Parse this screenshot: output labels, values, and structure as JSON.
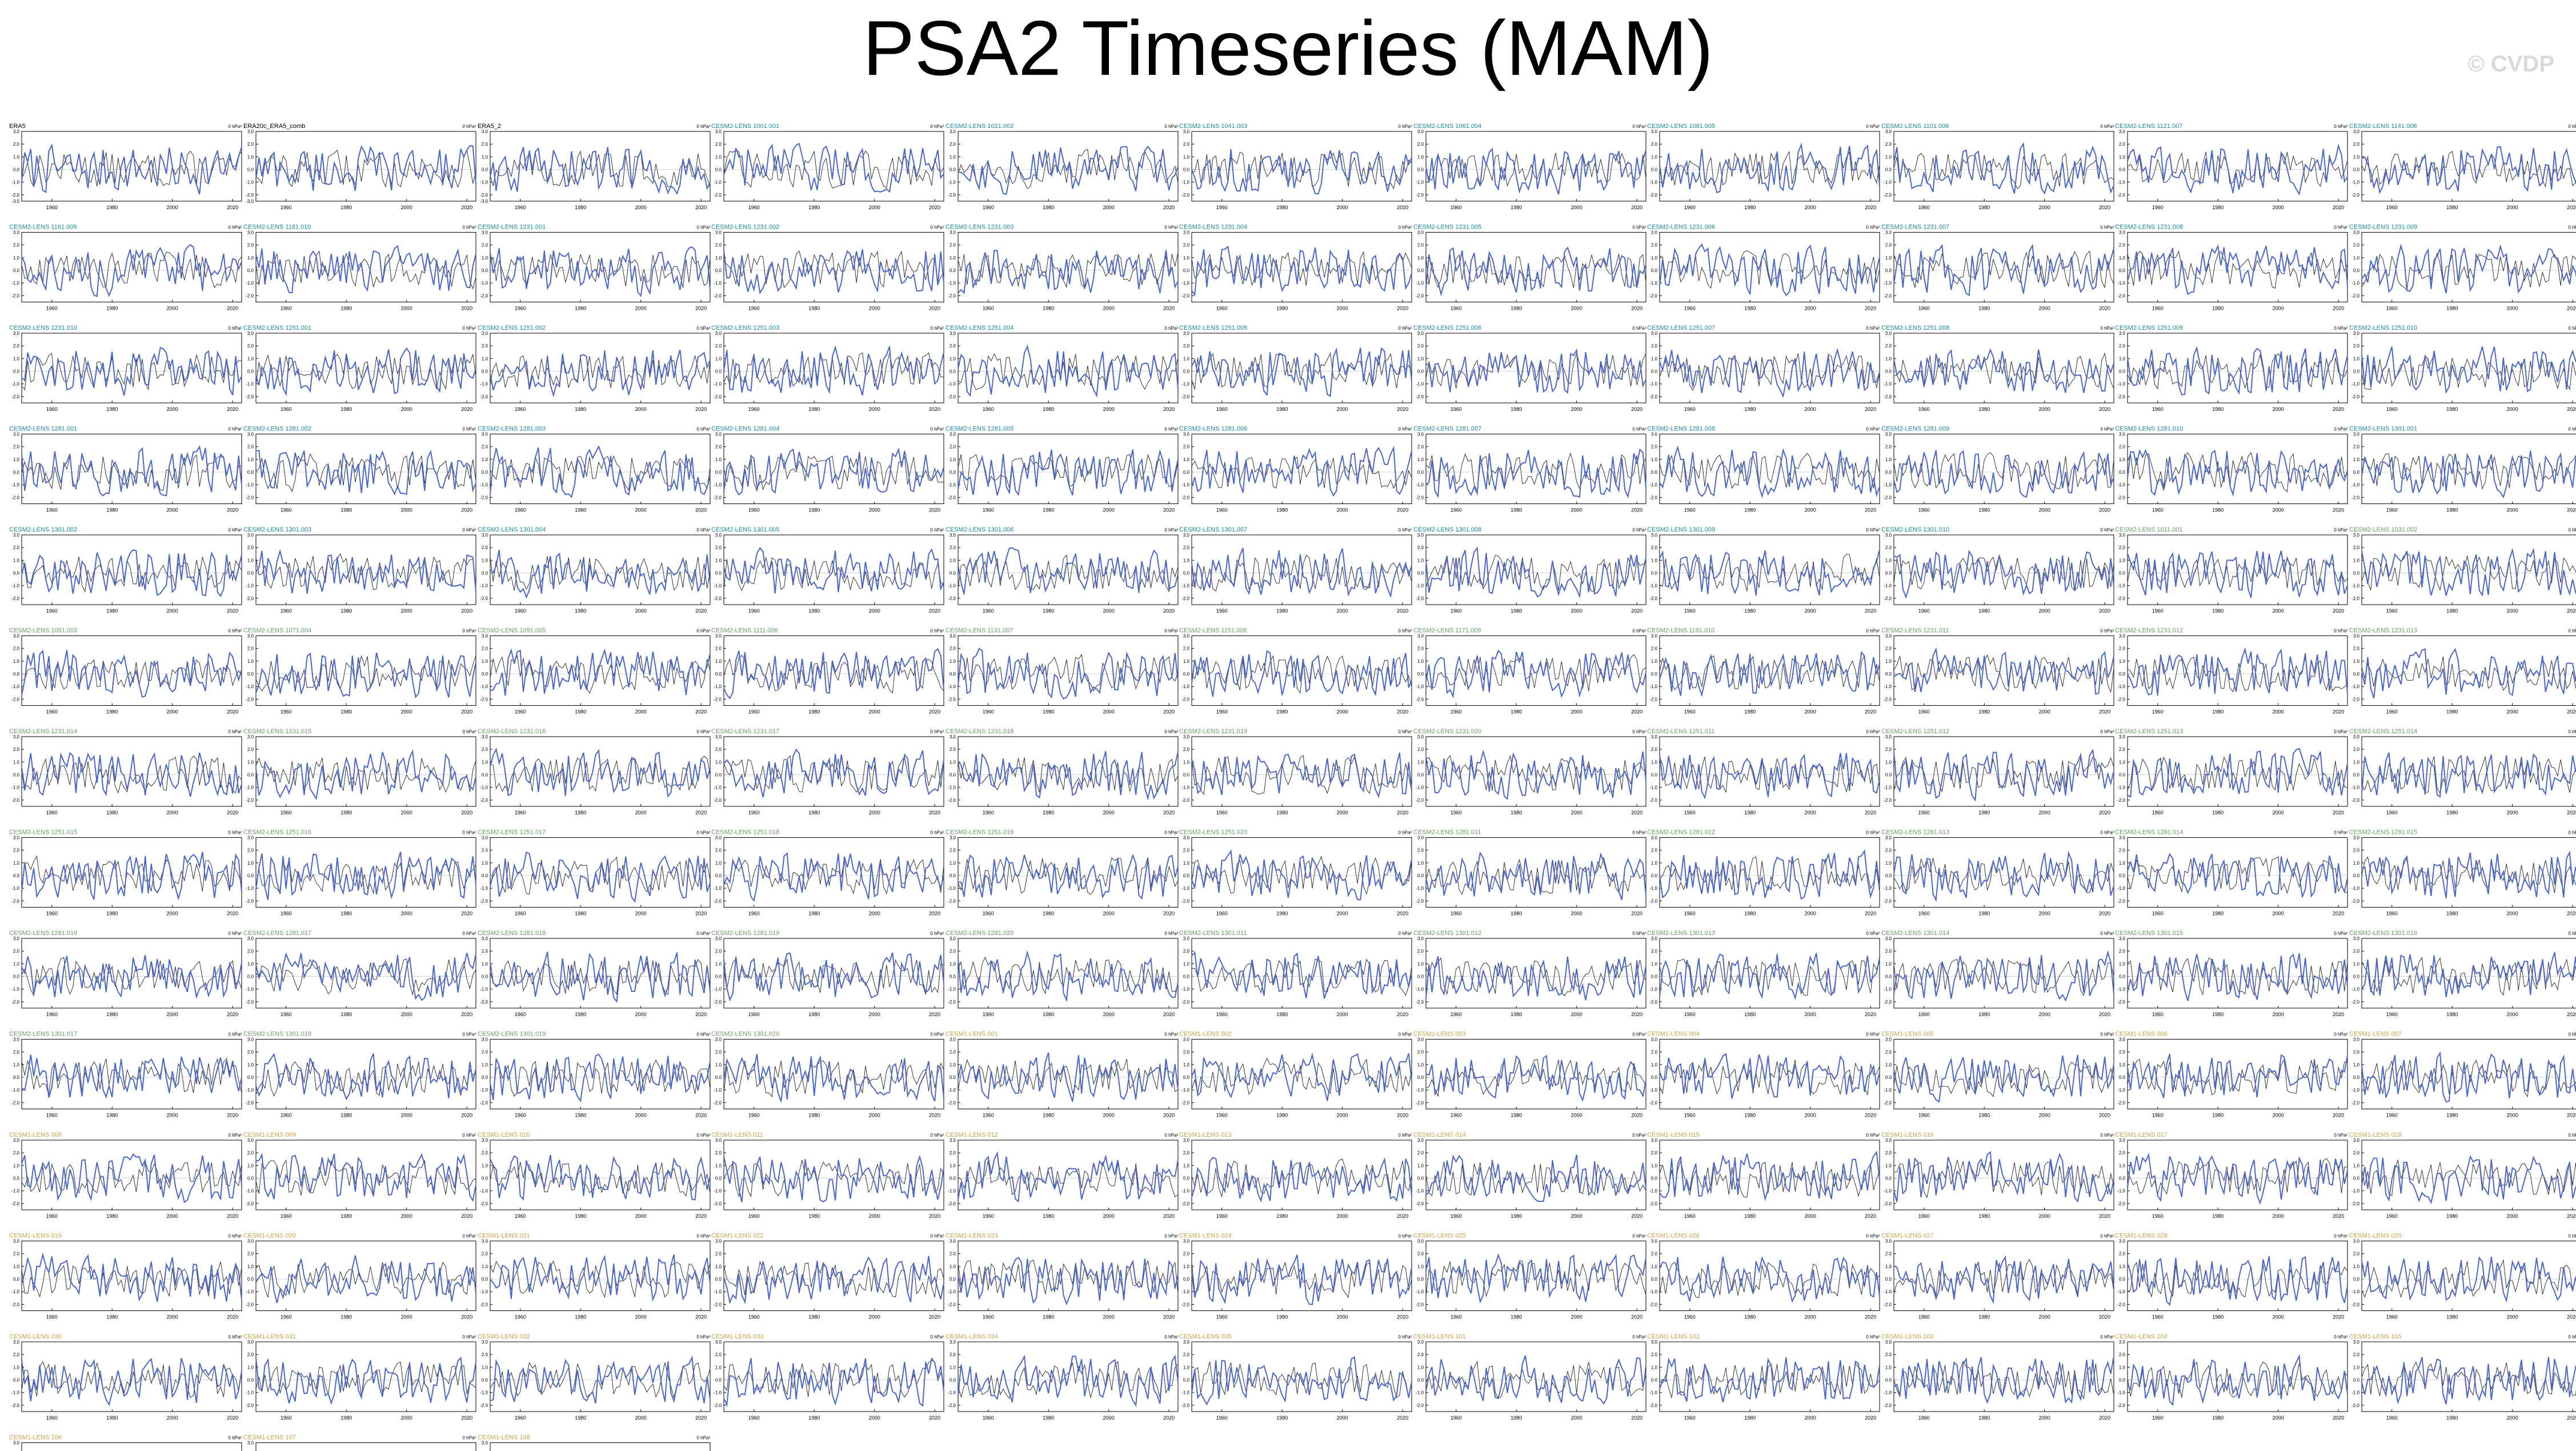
{
  "header": {
    "title": "PSA2 Timeseries (MAM)",
    "credit": "© CVDP"
  },
  "colors": {
    "observed_line": "#4a66c9",
    "ensemble_mean_line": "#333333",
    "label_obs": "#000000",
    "label_teal": "#1c8a9a",
    "label_green": "#6b9a6b",
    "label_gold": "#c8a24a"
  },
  "chart_data": {
    "type": "line",
    "layout": "13 rows x 11 columns of small panels",
    "units_label": "0 hPa²",
    "x_ticks": [
      "1960",
      "1980",
      "2000",
      "2020"
    ],
    "xlim": [
      1950,
      2023
    ],
    "ylim_typical": [
      -2.5,
      3.0
    ],
    "y_ticks_typical": [
      "3.0",
      "2.0",
      "1.0",
      "0.0",
      "-1.0",
      "-2.0"
    ],
    "series_note": "blue = panel member timeseries, gray = comparison line (values not readable at this resolution)",
    "panels": [
      {
        "label": "ERA5",
        "label_color": "obs",
        "y_ticks": [
          "3.0",
          "2.0",
          "1.0",
          "0.0",
          "-1.0",
          "-2.0",
          "-3.0"
        ]
      },
      {
        "label": "ERA20c_ERA5_comb",
        "label_color": "obs",
        "y_ticks": [
          "3.0",
          "2.0",
          "1.0",
          "0.0",
          "-1.0",
          "-2.0",
          "-3.0"
        ]
      },
      {
        "label": "ERA5_2",
        "label_color": "obs",
        "y_ticks": [
          "3.0",
          "2.0",
          "1.0",
          "0.0",
          "-1.0",
          "-2.0",
          "-3.0"
        ]
      },
      {
        "label": "CESM2-LENS 1001.001",
        "label_color": "teal"
      },
      {
        "label": "CESM2-LENS 1021.002",
        "label_color": "teal"
      },
      {
        "label": "CESM2-LENS 1041.003",
        "label_color": "teal"
      },
      {
        "label": "CESM2-LENS 1061.004",
        "label_color": "teal"
      },
      {
        "label": "CESM2-LENS 1081.005",
        "label_color": "teal"
      },
      {
        "label": "CESM2-LENS 1101.006",
        "label_color": "teal"
      },
      {
        "label": "CESM2-LENS 1121.007",
        "label_color": "teal"
      },
      {
        "label": "CESM2-LENS 1141.008",
        "label_color": "teal"
      },
      {
        "label": "CESM2-LENS 1161.009",
        "label_color": "teal"
      },
      {
        "label": "CESM2-LENS 1181.010",
        "label_color": "teal"
      },
      {
        "label": "CESM2-LENS 1231.001",
        "label_color": "teal"
      },
      {
        "label": "CESM2-LENS 1231.002",
        "label_color": "teal"
      },
      {
        "label": "CESM2-LENS 1231.003",
        "label_color": "teal"
      },
      {
        "label": "CESM2-LENS 1231.004",
        "label_color": "teal"
      },
      {
        "label": "CESM2-LENS 1231.005",
        "label_color": "teal"
      },
      {
        "label": "CESM2-LENS 1231.006",
        "label_color": "teal"
      },
      {
        "label": "CESM2-LENS 1231.007",
        "label_color": "teal"
      },
      {
        "label": "CESM2-LENS 1231.008",
        "label_color": "teal"
      },
      {
        "label": "CESM2-LENS 1231.009",
        "label_color": "teal"
      },
      {
        "label": "CESM2-LENS 1231.010",
        "label_color": "teal"
      },
      {
        "label": "CESM2-LENS 1251.001",
        "label_color": "teal"
      },
      {
        "label": "CESM2-LENS 1251.002",
        "label_color": "teal"
      },
      {
        "label": "CESM2-LENS 1251.003",
        "label_color": "teal"
      },
      {
        "label": "CESM2-LENS 1251.004",
        "label_color": "teal"
      },
      {
        "label": "CESM2-LENS 1251.005",
        "label_color": "teal"
      },
      {
        "label": "CESM2-LENS 1251.006",
        "label_color": "teal"
      },
      {
        "label": "CESM2-LENS 1251.007",
        "label_color": "teal"
      },
      {
        "label": "CESM2-LENS 1251.008",
        "label_color": "teal"
      },
      {
        "label": "CESM2-LENS 1251.009",
        "label_color": "teal"
      },
      {
        "label": "CESM2-LENS 1251.010",
        "label_color": "teal"
      },
      {
        "label": "CESM2-LENS 1281.001",
        "label_color": "teal"
      },
      {
        "label": "CESM2-LENS 1281.002",
        "label_color": "teal"
      },
      {
        "label": "CESM2-LENS 1281.003",
        "label_color": "teal"
      },
      {
        "label": "CESM2-LENS 1281.004",
        "label_color": "teal"
      },
      {
        "label": "CESM2-LENS 1281.005",
        "label_color": "teal"
      },
      {
        "label": "CESM2-LENS 1281.006",
        "label_color": "teal"
      },
      {
        "label": "CESM2-LENS 1281.007",
        "label_color": "teal"
      },
      {
        "label": "CESM2-LENS 1281.008",
        "label_color": "teal"
      },
      {
        "label": "CESM2-LENS 1281.009",
        "label_color": "teal"
      },
      {
        "label": "CESM2-LENS 1281.010",
        "label_color": "teal"
      },
      {
        "label": "CESM2-LENS 1301.001",
        "label_color": "teal"
      },
      {
        "label": "CESM2-LENS 1301.002",
        "label_color": "teal"
      },
      {
        "label": "CESM2-LENS 1301.003",
        "label_color": "teal"
      },
      {
        "label": "CESM2-LENS 1301.004",
        "label_color": "teal"
      },
      {
        "label": "CESM2-LENS 1301.005",
        "label_color": "teal"
      },
      {
        "label": "CESM2-LENS 1301.006",
        "label_color": "teal"
      },
      {
        "label": "CESM2-LENS 1301.007",
        "label_color": "teal"
      },
      {
        "label": "CESM2-LENS 1301.008",
        "label_color": "teal"
      },
      {
        "label": "CESM2-LENS 1301.009",
        "label_color": "teal"
      },
      {
        "label": "CESM2-LENS 1301.010",
        "label_color": "teal"
      },
      {
        "label": "CESM2-LENS 1011.001",
        "label_color": "green"
      },
      {
        "label": "CESM2-LENS 1031.002",
        "label_color": "green"
      },
      {
        "label": "CESM2-LENS 1051.003",
        "label_color": "green"
      },
      {
        "label": "CESM2-LENS 1071.004",
        "label_color": "green"
      },
      {
        "label": "CESM2-LENS 1091.005",
        "label_color": "green"
      },
      {
        "label": "CESM2-LENS 1111.006",
        "label_color": "green"
      },
      {
        "label": "CESM2-LENS 1131.007",
        "label_color": "green"
      },
      {
        "label": "CESM2-LENS 1151.008",
        "label_color": "green"
      },
      {
        "label": "CESM2-LENS 1171.009",
        "label_color": "green"
      },
      {
        "label": "CESM2-LENS 1191.010",
        "label_color": "green"
      },
      {
        "label": "CESM2-LENS 1231.011",
        "label_color": "green"
      },
      {
        "label": "CESM2-LENS 1231.012",
        "label_color": "green"
      },
      {
        "label": "CESM2-LENS 1231.013",
        "label_color": "green"
      },
      {
        "label": "CESM2-LENS 1231.014",
        "label_color": "green"
      },
      {
        "label": "CESM2-LENS 1231.015",
        "label_color": "green"
      },
      {
        "label": "CESM2-LENS 1231.016",
        "label_color": "green"
      },
      {
        "label": "CESM2-LENS 1231.017",
        "label_color": "green"
      },
      {
        "label": "CESM2-LENS 1231.018",
        "label_color": "green"
      },
      {
        "label": "CESM2-LENS 1231.019",
        "label_color": "green"
      },
      {
        "label": "CESM2-LENS 1231.020",
        "label_color": "green"
      },
      {
        "label": "CESM2-LENS 1251.011",
        "label_color": "green"
      },
      {
        "label": "CESM2-LENS 1251.012",
        "label_color": "green"
      },
      {
        "label": "CESM2-LENS 1251.013",
        "label_color": "green"
      },
      {
        "label": "CESM2-LENS 1251.014",
        "label_color": "green"
      },
      {
        "label": "CESM2-LENS 1251.015",
        "label_color": "green"
      },
      {
        "label": "CESM2-LENS 1251.016",
        "label_color": "green"
      },
      {
        "label": "CESM2-LENS 1251.017",
        "label_color": "green"
      },
      {
        "label": "CESM2-LENS 1251.018",
        "label_color": "green"
      },
      {
        "label": "CESM2-LENS 1251.019",
        "label_color": "green"
      },
      {
        "label": "CESM2-LENS 1251.020",
        "label_color": "green"
      },
      {
        "label": "CESM2-LENS 1281.011",
        "label_color": "green"
      },
      {
        "label": "CESM2-LENS 1281.012",
        "label_color": "green"
      },
      {
        "label": "CESM2-LENS 1281.013",
        "label_color": "green"
      },
      {
        "label": "CESM2-LENS 1281.014",
        "label_color": "green"
      },
      {
        "label": "CESM2-LENS 1281.015",
        "label_color": "green"
      },
      {
        "label": "CESM2-LENS 1281.016",
        "label_color": "green"
      },
      {
        "label": "CESM2-LENS 1281.017",
        "label_color": "green"
      },
      {
        "label": "CESM2-LENS 1281.018",
        "label_color": "green"
      },
      {
        "label": "CESM2-LENS 1281.019",
        "label_color": "green"
      },
      {
        "label": "CESM2-LENS 1281.020",
        "label_color": "green"
      },
      {
        "label": "CESM2-LENS 1301.011",
        "label_color": "green"
      },
      {
        "label": "CESM2-LENS 1301.012",
        "label_color": "green"
      },
      {
        "label": "CESM2-LENS 1301.013",
        "label_color": "green"
      },
      {
        "label": "CESM2-LENS 1301.014",
        "label_color": "green"
      },
      {
        "label": "CESM2-LENS 1301.015",
        "label_color": "green"
      },
      {
        "label": "CESM2-LENS 1301.016",
        "label_color": "green"
      },
      {
        "label": "CESM2-LENS 1301.017",
        "label_color": "green"
      },
      {
        "label": "CESM2-LENS 1301.018",
        "label_color": "green"
      },
      {
        "label": "CESM2-LENS 1301.019",
        "label_color": "green"
      },
      {
        "label": "CESM2-LENS 1301.020",
        "label_color": "green"
      },
      {
        "label": "CESM1-LENS 001",
        "label_color": "gold"
      },
      {
        "label": "CESM1-LENS 002",
        "label_color": "gold"
      },
      {
        "label": "CESM1-LENS 003",
        "label_color": "gold"
      },
      {
        "label": "CESM1-LENS 004",
        "label_color": "gold"
      },
      {
        "label": "CESM1-LENS 005",
        "label_color": "gold"
      },
      {
        "label": "CESM1-LENS 006",
        "label_color": "gold"
      },
      {
        "label": "CESM1-LENS 007",
        "label_color": "gold"
      },
      {
        "label": "CESM1-LENS 008",
        "label_color": "gold"
      },
      {
        "label": "CESM1-LENS 009",
        "label_color": "gold"
      },
      {
        "label": "CESM1-LENS 010",
        "label_color": "gold"
      },
      {
        "label": "CESM1-LENS 011",
        "label_color": "gold"
      },
      {
        "label": "CESM1-LENS 012",
        "label_color": "gold"
      },
      {
        "label": "CESM1-LENS 013",
        "label_color": "gold"
      },
      {
        "label": "CESM1-LENS 014",
        "label_color": "gold"
      },
      {
        "label": "CESM1-LENS 015",
        "label_color": "gold"
      },
      {
        "label": "CESM1-LENS 016",
        "label_color": "gold"
      },
      {
        "label": "CESM1-LENS 017",
        "label_color": "gold"
      },
      {
        "label": "CESM1-LENS 018",
        "label_color": "gold"
      },
      {
        "label": "CESM1-LENS 019",
        "label_color": "gold"
      },
      {
        "label": "CESM1-LENS 020",
        "label_color": "gold"
      },
      {
        "label": "CESM1-LENS 021",
        "label_color": "gold"
      },
      {
        "label": "CESM1-LENS 022",
        "label_color": "gold"
      },
      {
        "label": "CESM1-LENS 023",
        "label_color": "gold"
      },
      {
        "label": "CESM1-LENS 024",
        "label_color": "gold"
      },
      {
        "label": "CESM1-LENS 025",
        "label_color": "gold"
      },
      {
        "label": "CESM1-LENS 026",
        "label_color": "gold"
      },
      {
        "label": "CESM1-LENS 027",
        "label_color": "gold"
      },
      {
        "label": "CESM1-LENS 028",
        "label_color": "gold"
      },
      {
        "label": "CESM1-LENS 029",
        "label_color": "gold"
      },
      {
        "label": "CESM1-LENS 030",
        "label_color": "gold"
      },
      {
        "label": "CESM1-LENS 031",
        "label_color": "gold"
      },
      {
        "label": "CESM1-LENS 032",
        "label_color": "gold"
      },
      {
        "label": "CESM1-LENS 033",
        "label_color": "gold"
      },
      {
        "label": "CESM1-LENS 034",
        "label_color": "gold"
      },
      {
        "label": "CESM1-LENS 035",
        "label_color": "gold"
      },
      {
        "label": "CESM1-LENS 101",
        "label_color": "gold"
      },
      {
        "label": "CESM1-LENS 102",
        "label_color": "gold"
      },
      {
        "label": "CESM1-LENS 103",
        "label_color": "gold"
      },
      {
        "label": "CESM1-LENS 104",
        "label_color": "gold"
      },
      {
        "label": "CESM1-LENS 105",
        "label_color": "gold"
      },
      {
        "label": "CESM1-LENS 106",
        "label_color": "gold"
      },
      {
        "label": "CESM1-LENS 107",
        "label_color": "gold"
      },
      {
        "label": "CESM1-LENS 108",
        "label_color": "gold"
      }
    ]
  }
}
